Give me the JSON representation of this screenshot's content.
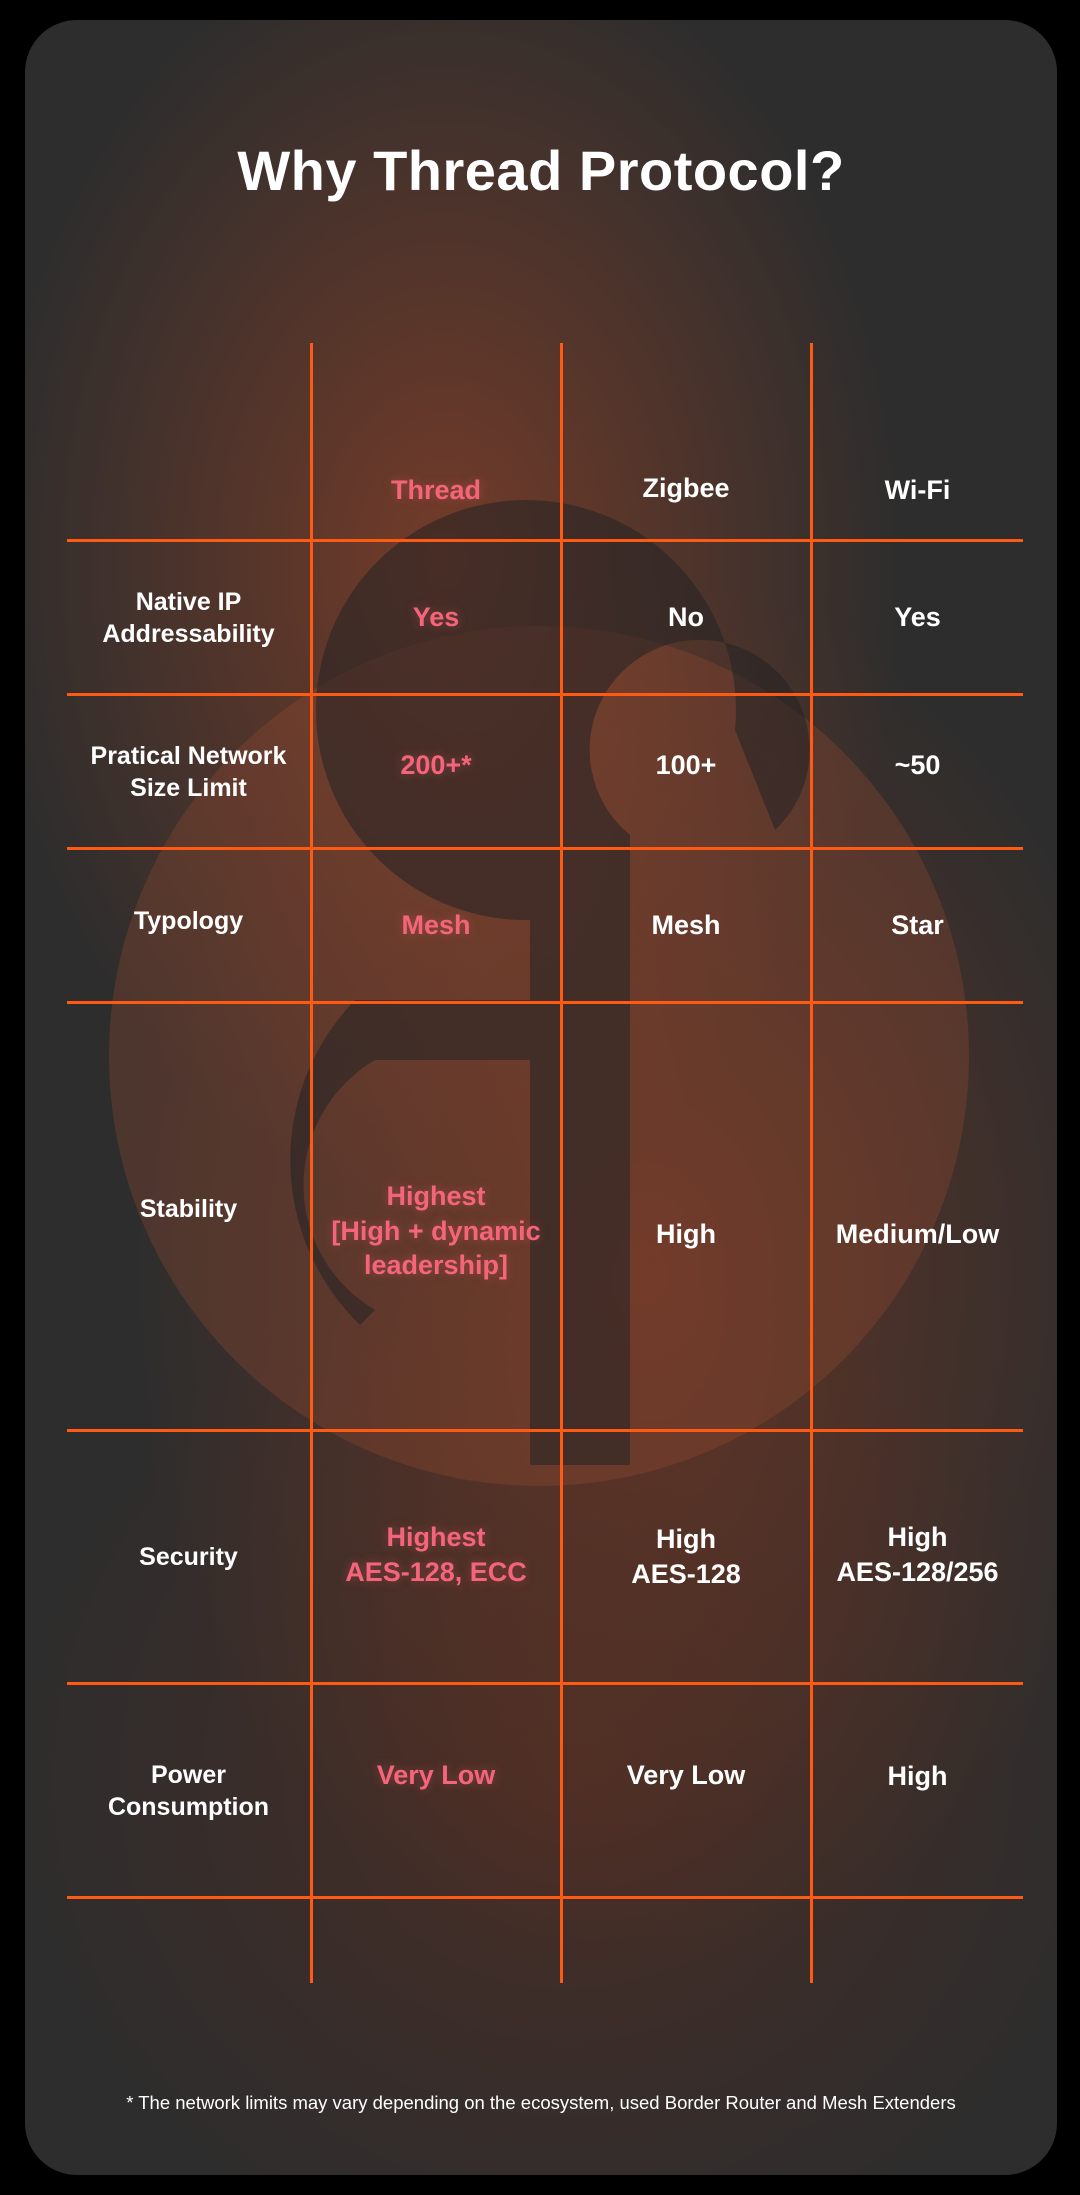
{
  "title": "Why Thread Protocol?",
  "colors": {
    "accent_grid": "#ff5a14",
    "thread_text": "#f5657a",
    "card_bg": "#2d2d2d"
  },
  "background_logo_icon": "thread-logo-icon",
  "table": {
    "columns": [
      "Thread",
      "Zigbee",
      "Wi-Fi"
    ],
    "rows": [
      {
        "label": [
          "Native IP",
          "Addressability"
        ],
        "thread": [
          "Yes"
        ],
        "zigbee": [
          "No"
        ],
        "wifi": [
          "Yes"
        ]
      },
      {
        "label": [
          "Pratical Network",
          "Size Limit"
        ],
        "thread": [
          "200+*"
        ],
        "zigbee": [
          "100+"
        ],
        "wifi": [
          "~50"
        ]
      },
      {
        "label": [
          "Typology"
        ],
        "thread": [
          "Mesh"
        ],
        "zigbee": [
          "Mesh"
        ],
        "wifi": [
          "Star"
        ]
      },
      {
        "label": [
          "Stability"
        ],
        "thread": [
          "Highest",
          "[High + dynamic",
          "leadership]"
        ],
        "zigbee": [
          "High"
        ],
        "wifi": [
          "Medium/Low"
        ]
      },
      {
        "label": [
          "Security"
        ],
        "thread": [
          "Highest",
          "AES-128, ECC"
        ],
        "zigbee": [
          "High",
          "AES-128"
        ],
        "wifi": [
          "High",
          "AES-128/256"
        ]
      },
      {
        "label": [
          "Power",
          "Consumption"
        ],
        "thread": [
          "Very Low"
        ],
        "zigbee": [
          "Very Low"
        ],
        "wifi": [
          "High"
        ]
      }
    ]
  },
  "footnote": "* The network limits may vary depending on the ecosystem, used Border Router and Mesh Extenders"
}
